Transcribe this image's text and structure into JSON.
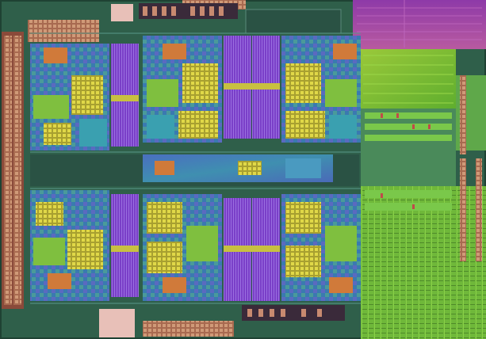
{
  "image": {
    "kind": "processor-die-micrograph",
    "colors": {
      "substrate": "#2f5f4a",
      "substrate_dark": "#1f4233",
      "core_blue": "#3f5fa8",
      "core_cyan": "#3aa0b0",
      "logic_green": "#7fbf3f",
      "cache_purple": "#8a4fd0",
      "cache_purple_dark": "#6a34b0",
      "magenta_top": "#9a3fa8",
      "yellow_block": "#c8c040",
      "orange_block": "#d07a3a",
      "pad_ring": "#b87a5a",
      "l3_green": "#6fc43a",
      "l3_green_dark": "#4f9a2a"
    }
  }
}
